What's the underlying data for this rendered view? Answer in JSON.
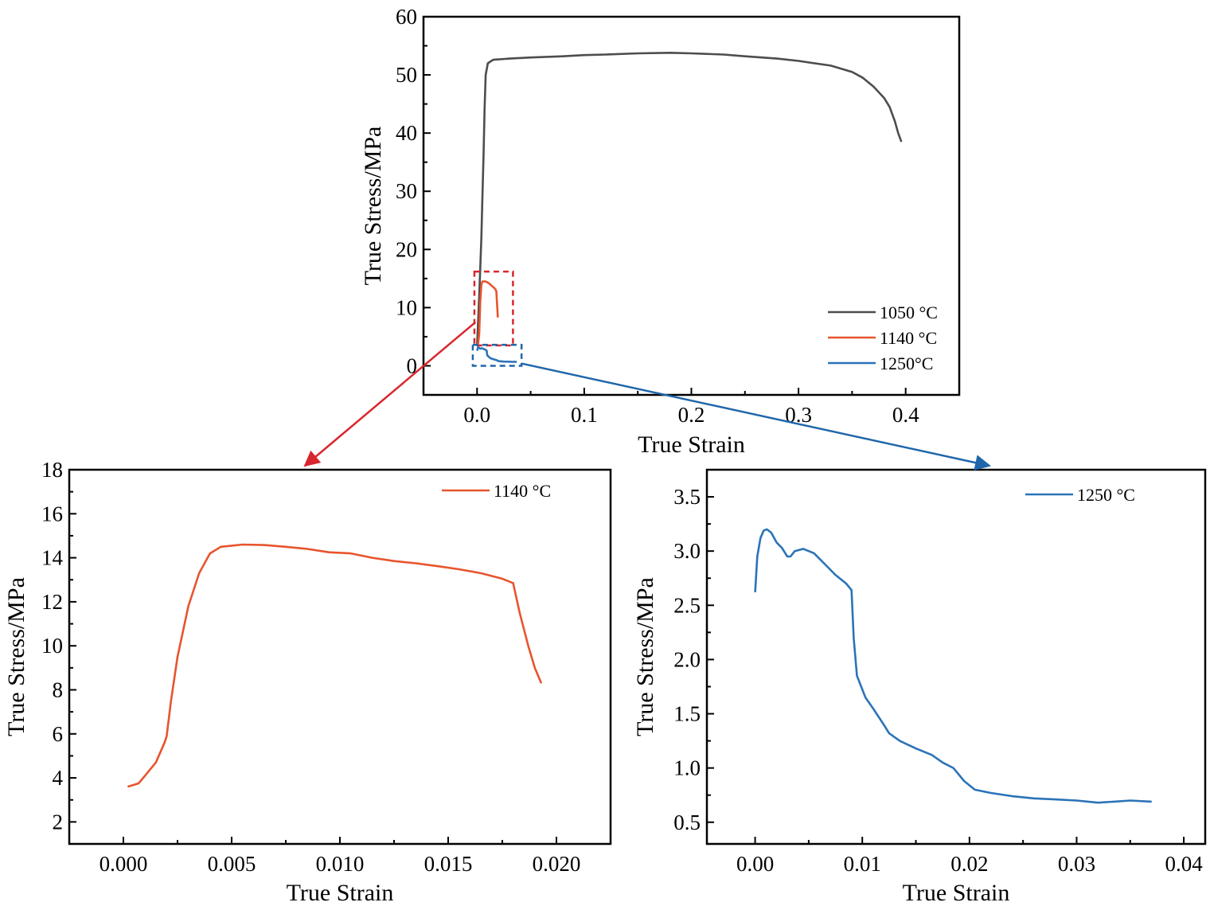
{
  "colors": {
    "c1050": "#4d4d4d",
    "c1140": "#e8542d",
    "c1250": "#2b73b8",
    "arrow_red": "#d9262e",
    "arrow_blue": "#1f66aa",
    "box_red": "#d9262e",
    "box_blue": "#1f66aa"
  },
  "chart_data": [
    {
      "id": "top",
      "type": "line",
      "xlabel": "True Strain",
      "ylabel": "True Stress/MPa",
      "xlim": [
        -0.05,
        0.45
      ],
      "ylim": [
        -5,
        60
      ],
      "xticks": [
        0.0,
        0.1,
        0.2,
        0.3,
        0.4
      ],
      "xticklabels": [
        "0.0",
        "0.1",
        "0.2",
        "0.3",
        "0.4"
      ],
      "yticks": [
        0,
        10,
        20,
        30,
        40,
        50,
        60
      ],
      "yticklabels": [
        "0",
        "10",
        "20",
        "30",
        "40",
        "50",
        "60"
      ],
      "grid": false,
      "legend": "bottom-right",
      "series": [
        {
          "name": "1050 °C",
          "color_key": "c1050",
          "points": [
            [
              0.0,
              3.5
            ],
            [
              0.002,
              12
            ],
            [
              0.004,
              22
            ],
            [
              0.005,
              29
            ],
            [
              0.006,
              36
            ],
            [
              0.007,
              44
            ],
            [
              0.008,
              50
            ],
            [
              0.01,
              52
            ],
            [
              0.015,
              52.6
            ],
            [
              0.03,
              52.8
            ],
            [
              0.05,
              53
            ],
            [
              0.08,
              53.2
            ],
            [
              0.1,
              53.4
            ],
            [
              0.12,
              53.5
            ],
            [
              0.15,
              53.7
            ],
            [
              0.18,
              53.8
            ],
            [
              0.2,
              53.7
            ],
            [
              0.23,
              53.5
            ],
            [
              0.25,
              53.2
            ],
            [
              0.28,
              52.8
            ],
            [
              0.3,
              52.4
            ],
            [
              0.33,
              51.6
            ],
            [
              0.35,
              50.5
            ],
            [
              0.36,
              49.5
            ],
            [
              0.37,
              48
            ],
            [
              0.38,
              46
            ],
            [
              0.385,
              44.5
            ],
            [
              0.39,
              42
            ],
            [
              0.393,
              40
            ],
            [
              0.396,
              38.5
            ]
          ]
        },
        {
          "name": "1140 °C",
          "color_key": "c1140",
          "points": [
            [
              0.0002,
              3.6
            ],
            [
              0.001,
              3.8
            ],
            [
              0.002,
              5.5
            ],
            [
              0.003,
              11
            ],
            [
              0.004,
              14
            ],
            [
              0.005,
              14.5
            ],
            [
              0.008,
              14.5
            ],
            [
              0.011,
              14.2
            ],
            [
              0.014,
              13.7
            ],
            [
              0.017,
              13.2
            ],
            [
              0.018,
              12.8
            ],
            [
              0.019,
              9.5
            ],
            [
              0.0193,
              8.3
            ]
          ]
        },
        {
          "name": "1250°C",
          "color_key": "c1250",
          "points": [
            [
              0.0,
              2.6
            ],
            [
              0.001,
              3.2
            ],
            [
              0.003,
              2.95
            ],
            [
              0.005,
              3.0
            ],
            [
              0.008,
              2.75
            ],
            [
              0.009,
              2.6
            ],
            [
              0.0095,
              1.8
            ],
            [
              0.012,
              1.35
            ],
            [
              0.015,
              1.15
            ],
            [
              0.018,
              1.0
            ],
            [
              0.02,
              0.8
            ],
            [
              0.025,
              0.72
            ],
            [
              0.03,
              0.7
            ],
            [
              0.033,
              0.68
            ],
            [
              0.037,
              0.69
            ]
          ]
        }
      ]
    },
    {
      "id": "left",
      "type": "line",
      "xlabel": "True Strain",
      "ylabel": "True Stress/MPa",
      "xlim": [
        -0.0025,
        0.0225
      ],
      "ylim": [
        1,
        18
      ],
      "xticks": [
        0.0,
        0.005,
        0.01,
        0.015,
        0.02
      ],
      "xticklabels": [
        "0.000",
        "0.005",
        "0.010",
        "0.015",
        "0.020"
      ],
      "yticks": [
        2,
        4,
        6,
        8,
        10,
        12,
        14,
        16,
        18
      ],
      "yticklabels": [
        "2",
        "4",
        "6",
        "8",
        "10",
        "12",
        "14",
        "16",
        "18"
      ],
      "grid": false,
      "legend": "top-right",
      "series": [
        {
          "name": "1140 °C",
          "color_key": "c1140",
          "points": [
            [
              0.0002,
              3.6
            ],
            [
              0.0007,
              3.75
            ],
            [
              0.001,
              4.1
            ],
            [
              0.0015,
              4.7
            ],
            [
              0.0019,
              5.6
            ],
            [
              0.002,
              5.9
            ],
            [
              0.0022,
              7.5
            ],
            [
              0.0025,
              9.5
            ],
            [
              0.003,
              11.8
            ],
            [
              0.0035,
              13.3
            ],
            [
              0.004,
              14.2
            ],
            [
              0.0045,
              14.5
            ],
            [
              0.005,
              14.55
            ],
            [
              0.0055,
              14.6
            ],
            [
              0.0065,
              14.58
            ],
            [
              0.0075,
              14.5
            ],
            [
              0.0085,
              14.4
            ],
            [
              0.0095,
              14.25
            ],
            [
              0.0105,
              14.2
            ],
            [
              0.0115,
              14.0
            ],
            [
              0.0125,
              13.85
            ],
            [
              0.0135,
              13.75
            ],
            [
              0.0145,
              13.62
            ],
            [
              0.0155,
              13.48
            ],
            [
              0.0165,
              13.3
            ],
            [
              0.0175,
              13.05
            ],
            [
              0.018,
              12.85
            ],
            [
              0.0183,
              11.5
            ],
            [
              0.0187,
              10.0
            ],
            [
              0.019,
              9.0
            ],
            [
              0.0193,
              8.3
            ]
          ]
        }
      ]
    },
    {
      "id": "right",
      "type": "line",
      "xlabel": "True Strain",
      "ylabel": "True Stress/MPa",
      "xlim": [
        -0.0045,
        0.042
      ],
      "ylim": [
        0.3,
        3.75
      ],
      "xticks": [
        0.0,
        0.01,
        0.02,
        0.03,
        0.04
      ],
      "xticklabels": [
        "0.00",
        "0.01",
        "0.02",
        "0.03",
        "0.04"
      ],
      "yticks": [
        0.5,
        1.0,
        1.5,
        2.0,
        2.5,
        3.0,
        3.5
      ],
      "yticklabels": [
        "0.5",
        "1.0",
        "1.5",
        "2.0",
        "2.5",
        "3.0",
        "3.5"
      ],
      "grid": false,
      "legend": "top-right",
      "series": [
        {
          "name": "1250 °C",
          "color_key": "c1250",
          "points": [
            [
              0.0,
              2.62
            ],
            [
              0.0002,
              2.95
            ],
            [
              0.0005,
              3.12
            ],
            [
              0.0008,
              3.19
            ],
            [
              0.0011,
              3.2
            ],
            [
              0.0015,
              3.17
            ],
            [
              0.002,
              3.08
            ],
            [
              0.0025,
              3.03
            ],
            [
              0.003,
              2.95
            ],
            [
              0.0033,
              2.95
            ],
            [
              0.0037,
              3.0
            ],
            [
              0.0045,
              3.02
            ],
            [
              0.0055,
              2.98
            ],
            [
              0.0065,
              2.88
            ],
            [
              0.0075,
              2.78
            ],
            [
              0.0085,
              2.7
            ],
            [
              0.009,
              2.64
            ],
            [
              0.0092,
              2.2
            ],
            [
              0.0095,
              1.85
            ],
            [
              0.0103,
              1.65
            ],
            [
              0.011,
              1.55
            ],
            [
              0.012,
              1.4
            ],
            [
              0.0125,
              1.32
            ],
            [
              0.0135,
              1.25
            ],
            [
              0.015,
              1.18
            ],
            [
              0.0165,
              1.12
            ],
            [
              0.0175,
              1.05
            ],
            [
              0.0185,
              1.0
            ],
            [
              0.0195,
              0.88
            ],
            [
              0.0205,
              0.8
            ],
            [
              0.022,
              0.77
            ],
            [
              0.024,
              0.74
            ],
            [
              0.026,
              0.72
            ],
            [
              0.028,
              0.71
            ],
            [
              0.03,
              0.7
            ],
            [
              0.032,
              0.68
            ],
            [
              0.0335,
              0.69
            ],
            [
              0.035,
              0.7
            ],
            [
              0.037,
              0.69
            ]
          ]
        }
      ]
    }
  ]
}
